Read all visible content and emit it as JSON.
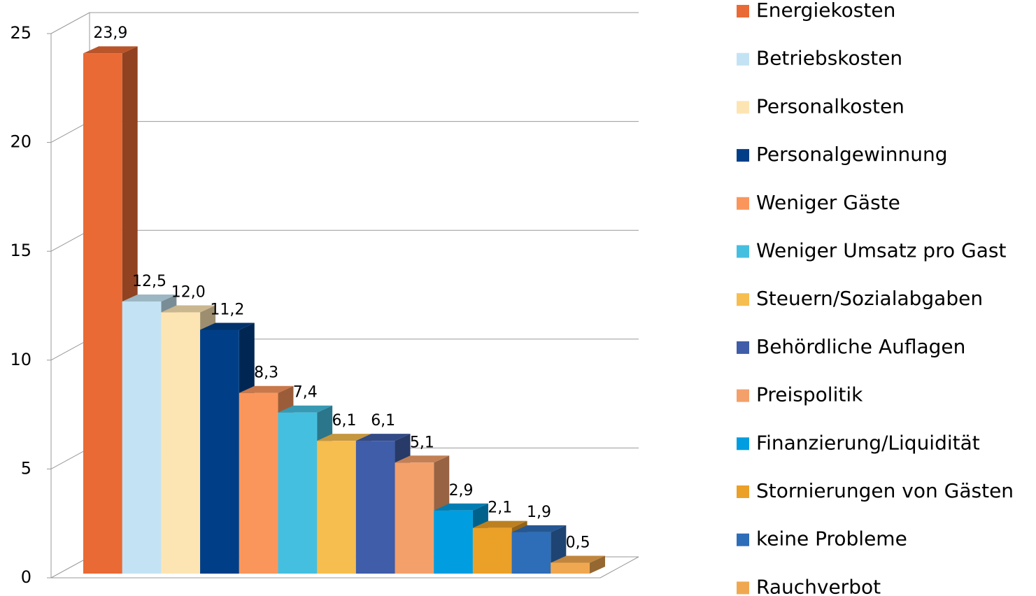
{
  "chart_data": {
    "type": "bar3d",
    "ylim": [
      0,
      25
    ],
    "yticks": [
      0,
      5,
      10,
      15,
      20,
      25
    ],
    "grid": true,
    "legend": "right",
    "series": [
      {
        "name": "Energiekosten",
        "color": "#e96a35",
        "values": [
          23.9
        ],
        "value_labels": [
          "23,9"
        ]
      },
      {
        "name": "Betriebskosten",
        "color": "#c3e3f4",
        "values": [
          12.5
        ],
        "value_labels": [
          "12,5"
        ]
      },
      {
        "name": "Personalkosten",
        "color": "#fde5b3",
        "values": [
          12.0
        ],
        "value_labels": [
          "12,0"
        ]
      },
      {
        "name": "Personalgewinnung",
        "color": "#003f87",
        "values": [
          11.2
        ],
        "value_labels": [
          "11,2"
        ]
      },
      {
        "name": "Weniger Gäste",
        "color": "#fa965c",
        "values": [
          8.3
        ],
        "value_labels": [
          "8,3"
        ]
      },
      {
        "name": "Weniger Umsatz pro Gast",
        "color": "#45bfe0",
        "values": [
          7.4
        ],
        "value_labels": [
          "7,4"
        ]
      },
      {
        "name": "Steuern/Sozialabgaben",
        "color": "#f6bd4f",
        "values": [
          6.1
        ],
        "value_labels": [
          "6,1"
        ]
      },
      {
        "name": "Behördliche Auflagen",
        "color": "#3f5da8",
        "values": [
          6.1
        ],
        "value_labels": [
          "6,1"
        ]
      },
      {
        "name": "Preispolitik",
        "color": "#f4a06a",
        "values": [
          5.1
        ],
        "value_labels": [
          "5,1"
        ]
      },
      {
        "name": "Finanzierung/Liquidität",
        "color": "#009de0",
        "values": [
          2.9
        ],
        "value_labels": [
          "2,9"
        ]
      },
      {
        "name": "Stornierungen von Gästen",
        "color": "#eba028",
        "values": [
          2.1
        ],
        "value_labels": [
          "2,1"
        ]
      },
      {
        "name": "keine Probleme",
        "color": "#2e6db8",
        "values": [
          1.9
        ],
        "value_labels": [
          "1,9"
        ]
      },
      {
        "name": "Rauchverbot",
        "color": "#f0a850",
        "values": [
          0.5
        ],
        "value_labels": [
          "0,5"
        ]
      }
    ]
  }
}
